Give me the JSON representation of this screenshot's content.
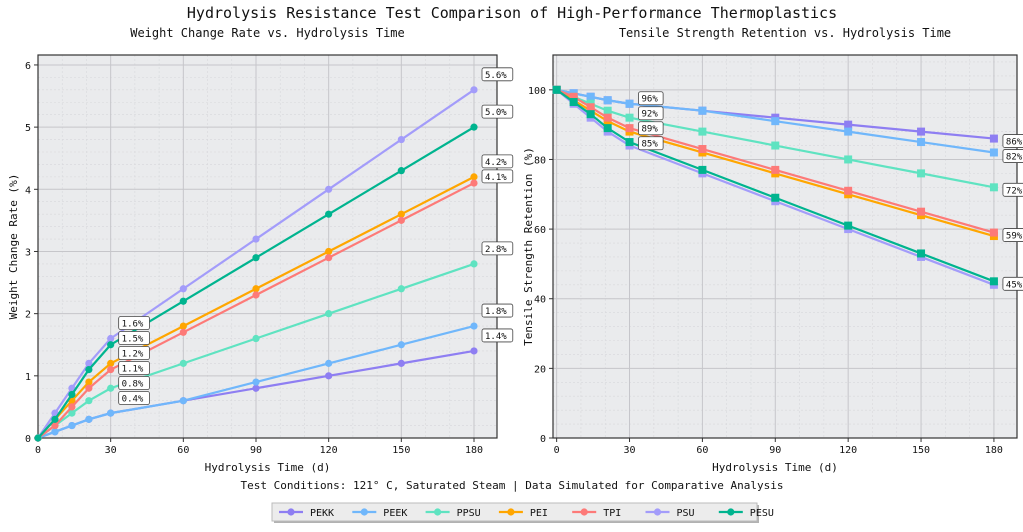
{
  "title": "Hydrolysis Resistance Test Comparison of High-Performance Thermoplastics",
  "footnote": "Test Conditions: 121° C, Saturated Steam | Data Simulated for Comparative Analysis",
  "colors": {
    "PEKK": "#8e7ef2",
    "PEEK": "#70b7fb",
    "PPSU": "#5fe3c1",
    "PEI": "#ffa600",
    "TPI": "#fd7a78",
    "PSU": "#a39cfa",
    "PESU": "#00b48f"
  },
  "legend": [
    "PEKK",
    "PEEK",
    "PPSU",
    "PEI",
    "TPI",
    "PSU",
    "PESU"
  ],
  "chart_data": [
    {
      "type": "line",
      "title": "Weight Change Rate vs. Hydrolysis Time",
      "xlabel": "Hydrolysis Time (d)",
      "ylabel": "Weight Change Rate (%)",
      "xlim": [
        0,
        189.5
      ],
      "ylim": [
        0,
        6.16
      ],
      "xticks": [
        0,
        30,
        60,
        90,
        120,
        150,
        180
      ],
      "yticks": [
        0,
        1,
        2,
        3,
        4,
        5,
        6
      ],
      "grid": true,
      "marker": "circle",
      "x": [
        0,
        7,
        14,
        21,
        30,
        60,
        90,
        120,
        150,
        180
      ],
      "series": [
        {
          "name": "PEKK",
          "values": [
            0,
            0.1,
            0.2,
            0.3,
            0.4,
            0.6,
            0.8,
            1.0,
            1.2,
            1.4
          ]
        },
        {
          "name": "PEEK",
          "values": [
            0,
            0.1,
            0.2,
            0.3,
            0.4,
            0.6,
            0.9,
            1.2,
            1.5,
            1.8
          ]
        },
        {
          "name": "PPSU",
          "values": [
            0,
            0.2,
            0.4,
            0.6,
            0.8,
            1.2,
            1.6,
            2.0,
            2.4,
            2.8
          ]
        },
        {
          "name": "PEI",
          "values": [
            0,
            0.3,
            0.6,
            0.9,
            1.2,
            1.8,
            2.4,
            3.0,
            3.6,
            4.2
          ]
        },
        {
          "name": "TPI",
          "values": [
            0,
            0.2,
            0.5,
            0.8,
            1.1,
            1.7,
            2.3,
            2.9,
            3.5,
            4.1
          ]
        },
        {
          "name": "PSU",
          "values": [
            0,
            0.4,
            0.8,
            1.2,
            1.6,
            2.4,
            3.2,
            4.0,
            4.8,
            5.6
          ]
        },
        {
          "name": "PESU",
          "values": [
            0,
            0.3,
            0.7,
            1.1,
            1.5,
            2.2,
            2.9,
            3.6,
            4.3,
            5.0
          ]
        }
      ],
      "annotations": [
        {
          "x": 30,
          "y": 0.4,
          "text": "0.4%"
        },
        {
          "x": 30,
          "y": 0.8,
          "text": "0.8%"
        },
        {
          "x": 30,
          "y": 1.2,
          "text": "1.2%"
        },
        {
          "x": 30,
          "y": 1.1,
          "text": "1.1%"
        },
        {
          "x": 30,
          "y": 1.6,
          "text": "1.6%"
        },
        {
          "x": 30,
          "y": 1.5,
          "text": "1.5%"
        },
        {
          "x": 180,
          "y": 1.4,
          "text": "1.4%"
        },
        {
          "x": 180,
          "y": 1.8,
          "text": "1.8%"
        },
        {
          "x": 180,
          "y": 2.8,
          "text": "2.8%"
        },
        {
          "x": 180,
          "y": 4.2,
          "text": "4.2%"
        },
        {
          "x": 180,
          "y": 4.1,
          "text": "4.1%"
        },
        {
          "x": 180,
          "y": 5.6,
          "text": "5.6%"
        },
        {
          "x": 180,
          "y": 5.0,
          "text": "5.0%"
        }
      ]
    },
    {
      "type": "line",
      "title": "Tensile Strength Retention vs. Hydrolysis Time",
      "xlabel": "Hydrolysis Time (d)",
      "ylabel": "Tensile Strength Retention (%)",
      "xlim": [
        -1.5,
        189.5
      ],
      "ylim": [
        0,
        110
      ],
      "xticks": [
        0,
        30,
        60,
        90,
        120,
        150,
        180
      ],
      "yticks": [
        0,
        20,
        40,
        60,
        80,
        100
      ],
      "grid": true,
      "marker": "square",
      "x": [
        0,
        7,
        14,
        21,
        30,
        60,
        90,
        120,
        150,
        180
      ],
      "series": [
        {
          "name": "PEKK",
          "values": [
            100,
            99,
            98,
            97,
            96,
            94,
            92,
            90,
            88,
            86
          ]
        },
        {
          "name": "PEEK",
          "values": [
            100,
            99,
            98,
            97,
            96,
            94,
            91,
            88,
            85,
            82
          ]
        },
        {
          "name": "PPSU",
          "values": [
            100,
            98,
            96,
            94,
            92,
            88,
            84,
            80,
            76,
            72
          ]
        },
        {
          "name": "PEI",
          "values": [
            100,
            97,
            94,
            91,
            88,
            82,
            76,
            70,
            64,
            58
          ]
        },
        {
          "name": "TPI",
          "values": [
            100,
            98,
            95,
            92,
            89,
            83,
            77,
            71,
            65,
            59
          ]
        },
        {
          "name": "PSU",
          "values": [
            100,
            96,
            92,
            88,
            84,
            76,
            68,
            60,
            52,
            44
          ]
        },
        {
          "name": "PESU",
          "values": [
            100,
            96.5,
            93,
            89,
            85,
            77,
            69,
            61,
            53,
            45
          ]
        }
      ],
      "annotations": [
        {
          "x": 30,
          "y": 96,
          "text": "96%"
        },
        {
          "x": 30,
          "y": 92,
          "text": "92%"
        },
        {
          "x": 30,
          "y": 89,
          "text": "89%"
        },
        {
          "x": 30,
          "y": 85,
          "text": "85%"
        },
        {
          "x": 180,
          "y": 86,
          "text": "86%"
        },
        {
          "x": 180,
          "y": 82,
          "text": "82%"
        },
        {
          "x": 180,
          "y": 72,
          "text": "72%"
        },
        {
          "x": 180,
          "y": 59,
          "text": "59%"
        },
        {
          "x": 180,
          "y": 45,
          "text": "45%"
        }
      ]
    }
  ]
}
